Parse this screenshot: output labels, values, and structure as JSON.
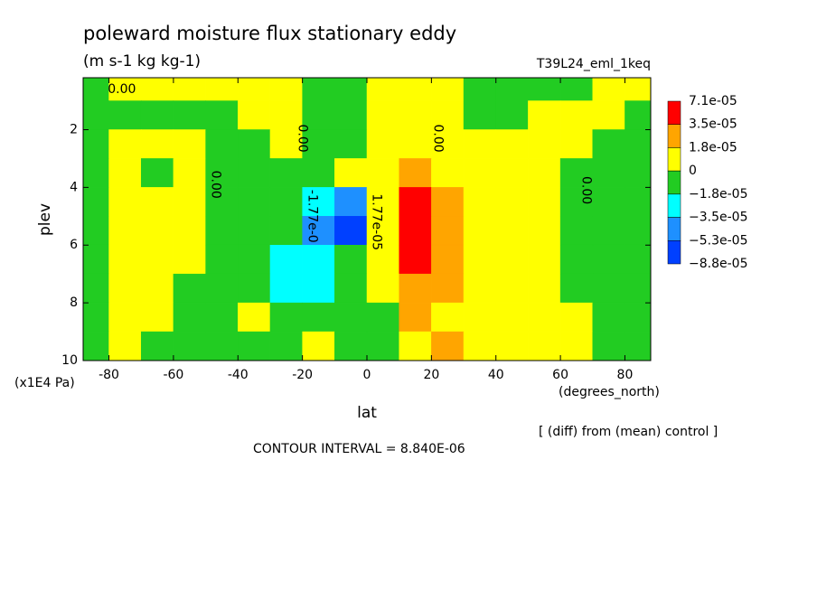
{
  "chart_data": {
    "type": "contour",
    "title": "poleward moisture flux stationary eddy",
    "subtitle": "(m s-1 kg kg-1)",
    "run_label": "T39L24_eml_1keq",
    "x_label": "lat",
    "x_unit": "(degrees_north)",
    "y_label": "plev",
    "y_unit": "(x1E4 Pa)",
    "note": "[ (diff) from (mean) control ]",
    "contour_text": "CONTOUR INTERVAL = 8.840E-06",
    "xlim": [
      -88,
      88
    ],
    "xticks": [
      -80,
      -60,
      -40,
      -20,
      0,
      20,
      40,
      60,
      80
    ],
    "ylim": [
      10,
      0.2
    ],
    "yticks": [
      2,
      4,
      6,
      8,
      10
    ],
    "levels": [
      {
        "value": 7.1e-05,
        "label": "7.1e-05"
      },
      {
        "value": 3.5e-05,
        "label": "3.5e-05"
      },
      {
        "value": 1.8e-05,
        "label": "1.8e-05"
      },
      0,
      {
        "value": -1.8e-05,
        "label": "−1.8e-05"
      },
      {
        "value": -3.5e-05,
        "label": "−3.5e-05"
      },
      {
        "value": -5.3e-05,
        "label": "−5.3e-05"
      },
      {
        "value": -8.8e-05,
        "label": "−8.8e-05"
      }
    ],
    "colors": [
      "#ff0000",
      "#ffa500",
      "#ffff00",
      "#22cc22",
      "#00ffff",
      "#1e90ff",
      "#0040ff"
    ],
    "lats": [
      -85,
      -75,
      -65,
      -55,
      -45,
      -35,
      -25,
      -15,
      -5,
      5,
      15,
      25,
      35,
      45,
      55,
      65,
      75,
      85
    ],
    "plevs": [
      0.5,
      1.5,
      2.5,
      3.5,
      4.5,
      5.5,
      6.5,
      7.5,
      8.5,
      9.5
    ],
    "z": [
      [
        -5e-06,
        5e-06,
        5e-06,
        5e-06,
        5e-06,
        5e-06,
        5e-06,
        -5e-06,
        -5e-06,
        5e-06,
        5e-06,
        5e-06,
        -5e-06,
        -5e-06,
        -5e-06,
        -5e-06,
        5e-06,
        5e-06
      ],
      [
        -5e-06,
        -5e-06,
        -5e-06,
        -5e-06,
        -5e-06,
        5e-06,
        5e-06,
        -5e-06,
        -5e-06,
        5e-06,
        5e-06,
        5e-06,
        -5e-06,
        -5e-06,
        5e-06,
        5e-06,
        5e-06,
        -5e-06
      ],
      [
        -5e-06,
        5e-06,
        5e-06,
        5e-06,
        -5e-06,
        -5e-06,
        5e-06,
        -5e-06,
        -5e-06,
        5e-06,
        5e-06,
        5e-06,
        5e-06,
        5e-06,
        5e-06,
        5e-06,
        -5e-06,
        -5e-06
      ],
      [
        -5e-06,
        5e-06,
        -5e-06,
        5e-06,
        -5e-06,
        -5e-06,
        -5e-06,
        -5e-06,
        5e-06,
        5e-06,
        2.5e-05,
        5e-06,
        5e-06,
        5e-06,
        5e-06,
        -5e-06,
        -5e-06,
        -5e-06
      ],
      [
        -5e-06,
        5e-06,
        5e-06,
        5e-06,
        -5e-06,
        -5e-06,
        -5e-06,
        -2.5e-05,
        -4e-05,
        5e-06,
        5e-05,
        2.5e-05,
        5e-06,
        5e-06,
        5e-06,
        -5e-06,
        -5e-06,
        -5e-06
      ],
      [
        -5e-06,
        5e-06,
        5e-06,
        5e-06,
        -5e-06,
        -5e-06,
        -5e-06,
        -4e-05,
        -6e-05,
        5e-06,
        5e-05,
        2.5e-05,
        5e-06,
        5e-06,
        5e-06,
        -5e-06,
        -5e-06,
        -5e-06
      ],
      [
        -5e-06,
        5e-06,
        5e-06,
        5e-06,
        -5e-06,
        -5e-06,
        -2.5e-05,
        -2.5e-05,
        -5e-06,
        5e-06,
        5e-05,
        2.5e-05,
        5e-06,
        5e-06,
        5e-06,
        -5e-06,
        -5e-06,
        -5e-06
      ],
      [
        -5e-06,
        5e-06,
        5e-06,
        -5e-06,
        -5e-06,
        -5e-06,
        -2.5e-05,
        -2.5e-05,
        -5e-06,
        5e-06,
        2.5e-05,
        2.5e-05,
        5e-06,
        5e-06,
        5e-06,
        -5e-06,
        -5e-06,
        -5e-06
      ],
      [
        -5e-06,
        5e-06,
        5e-06,
        -5e-06,
        -5e-06,
        5e-06,
        -5e-06,
        -5e-06,
        -5e-06,
        -5e-06,
        2.5e-05,
        5e-06,
        5e-06,
        5e-06,
        5e-06,
        5e-06,
        -5e-06,
        -5e-06
      ],
      [
        -5e-06,
        5e-06,
        -5e-06,
        -5e-06,
        -5e-06,
        -5e-06,
        -5e-06,
        5e-06,
        -5e-06,
        -5e-06,
        5e-06,
        2.5e-05,
        5e-06,
        5e-06,
        5e-06,
        5e-06,
        -5e-06,
        -5e-06
      ]
    ],
    "annotations": [
      {
        "text": "0.00",
        "lat": -76,
        "plev": 0.6
      },
      {
        "text": "0.00",
        "lat": -47,
        "plev": 3.9
      },
      {
        "text": "0.00",
        "lat": -20,
        "plev": 2.3
      },
      {
        "text": "0.00",
        "lat": 22,
        "plev": 2.3
      },
      {
        "text": "0.00",
        "lat": 68,
        "plev": 4.1
      },
      {
        "text": "-1.77e-0",
        "lat": -17,
        "plev": 5
      },
      {
        "text": "1.77e-05",
        "lat": 3,
        "plev": 5.2
      }
    ]
  }
}
